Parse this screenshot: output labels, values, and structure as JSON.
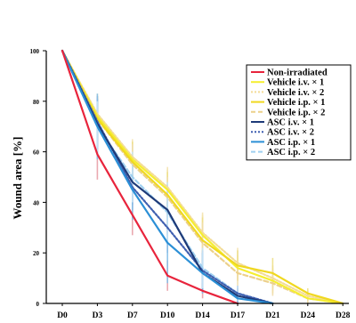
{
  "chart_data": {
    "type": "line",
    "title": "",
    "xlabel": "",
    "ylabel": "Wound area [%]",
    "categories": [
      "D0",
      "D3",
      "D7",
      "D10",
      "D14",
      "D17",
      "D21",
      "D24",
      "D28"
    ],
    "x": [
      0,
      3,
      7,
      10,
      14,
      17,
      21,
      24,
      28
    ],
    "ylim": [
      0,
      100
    ],
    "yticks": [
      0,
      20,
      40,
      60,
      80,
      100
    ],
    "ytick_labels": [
      "0",
      "20",
      "40",
      "60",
      "80",
      "100"
    ],
    "grid": false,
    "legend_position": "top-right",
    "series": [
      {
        "name": "Non-irradiated",
        "color": "#e8243c",
        "style": "solid",
        "error_color": "#e8a0a8",
        "x": [
          0,
          3,
          7,
          10,
          14,
          17
        ],
        "values": [
          100,
          59,
          35,
          11,
          5,
          0
        ],
        "errors": [
          0,
          10,
          8,
          6,
          3,
          0
        ]
      },
      {
        "name": "Vehicle i.v. × 1",
        "color": "#f5ee30",
        "style": "solid",
        "error_color": "#efe98a",
        "x": [
          0,
          3,
          7,
          10,
          14,
          17,
          21,
          24,
          28
        ],
        "values": [
          100,
          74,
          57,
          45,
          27,
          14,
          9,
          2,
          0
        ],
        "errors": [
          0,
          8,
          7,
          8,
          8,
          5,
          5,
          2,
          0
        ]
      },
      {
        "name": "Vehicle i.v. × 2",
        "color": "#f3dc97",
        "style": "dotted",
        "error_color": "#f4e3b0",
        "x": [
          0,
          3,
          7,
          10,
          14,
          17,
          21,
          24,
          28
        ],
        "values": [
          100,
          75,
          58,
          46,
          28,
          16,
          10,
          3,
          0
        ],
        "errors": [
          0,
          8,
          7,
          8,
          8,
          6,
          5,
          2,
          0
        ]
      },
      {
        "name": "Vehicle i.p. × 1",
        "color": "#f0d820",
        "style": "solid",
        "error_color": "#eedf8a",
        "x": [
          0,
          3,
          7,
          10,
          14,
          17,
          21,
          24,
          28
        ],
        "values": [
          100,
          73,
          56,
          43,
          25,
          15,
          12,
          4,
          0
        ],
        "errors": [
          0,
          9,
          8,
          9,
          9,
          6,
          6,
          2,
          0
        ]
      },
      {
        "name": "Vehicle i.p. × 2",
        "color": "#ecd08a",
        "style": "dashed",
        "error_color": "#f0dcaa",
        "x": [
          0,
          3,
          7,
          10,
          14,
          17,
          21,
          24,
          28
        ],
        "values": [
          100,
          73,
          55,
          42,
          24,
          12,
          8,
          2,
          0
        ],
        "errors": [
          0,
          8,
          8,
          8,
          8,
          5,
          5,
          2,
          0
        ]
      },
      {
        "name": "ASC i.v. × 1",
        "color": "#1e3a78",
        "style": "solid",
        "error_color": "#7d95c8",
        "x": [
          0,
          3,
          7,
          10,
          14,
          17,
          21
        ],
        "values": [
          100,
          71,
          48,
          37,
          12,
          3,
          0
        ],
        "errors": [
          0,
          10,
          9,
          10,
          8,
          3,
          0
        ]
      },
      {
        "name": "ASC i.v. × 2",
        "color": "#3f5fb0",
        "style": "dotted",
        "error_color": "#8ea4d8",
        "x": [
          0,
          3,
          7,
          10,
          14,
          17,
          21
        ],
        "values": [
          100,
          72,
          46,
          30,
          13,
          4,
          0
        ],
        "errors": [
          0,
          10,
          9,
          10,
          8,
          3,
          0
        ]
      },
      {
        "name": "ASC i.p. × 1",
        "color": "#2b8fd6",
        "style": "solid",
        "error_color": "#86bfe8",
        "x": [
          0,
          3,
          7,
          10,
          14,
          17,
          21
        ],
        "values": [
          100,
          70,
          45,
          24,
          12,
          2,
          0
        ],
        "errors": [
          0,
          13,
          12,
          16,
          8,
          2,
          0
        ]
      },
      {
        "name": "ASC i.p. × 2",
        "color": "#9fd0f0",
        "style": "dashed",
        "error_color": "#c8e4f6",
        "x": [
          0,
          3,
          7,
          10,
          14,
          17,
          21
        ],
        "values": [
          100,
          70,
          50,
          36,
          14,
          4,
          0
        ],
        "errors": [
          0,
          10,
          10,
          12,
          8,
          3,
          0
        ]
      }
    ]
  }
}
